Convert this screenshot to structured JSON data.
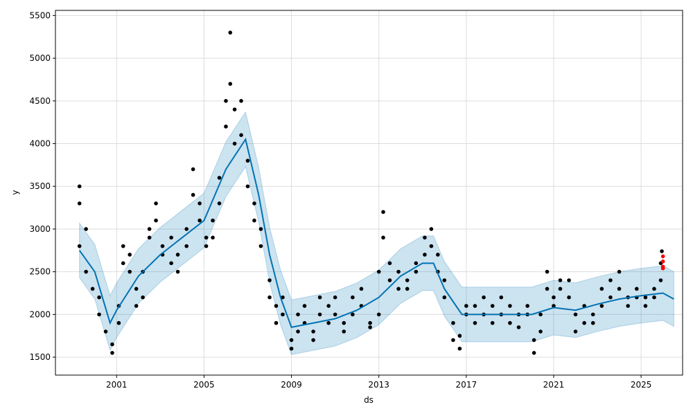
{
  "chart_data": {
    "type": "line",
    "title": "",
    "xlabel": "ds",
    "ylabel": "y",
    "xlim": [
      1998.2,
      2026.9
    ],
    "ylim": [
      1290,
      5560
    ],
    "grid": true,
    "x_ticks": [
      2001,
      2005,
      2009,
      2013,
      2017,
      2021,
      2025
    ],
    "x_tick_labels": [
      "2001",
      "2005",
      "2009",
      "2013",
      "2017",
      "2021",
      "2025"
    ],
    "y_ticks": [
      1500,
      2000,
      2500,
      3000,
      3500,
      4000,
      4500,
      5000,
      5500
    ],
    "y_tick_labels": [
      "1500",
      "2000",
      "2500",
      "3000",
      "3500",
      "4000",
      "4500",
      "5000",
      "5500"
    ],
    "colors": {
      "forecast": "#0072B2",
      "band": "#0072B2",
      "observed": "#000000",
      "test": "#ff0000"
    },
    "forecast": {
      "x": [
        1999.3,
        2000,
        2000.7,
        2001,
        2002,
        2003,
        2004,
        2005,
        2006,
        2006.9,
        2007.5,
        2008,
        2008.5,
        2009,
        2010,
        2011,
        2012,
        2013,
        2014,
        2015,
        2015.5,
        2016,
        2016.8,
        2018,
        2019,
        2020,
        2021,
        2022,
        2023,
        2024,
        2025,
        2026,
        2026.5
      ],
      "yhat": [
        2750,
        2500,
        1900,
        2050,
        2450,
        2700,
        2900,
        3100,
        3700,
        4050,
        3400,
        2700,
        2200,
        1850,
        1900,
        1950,
        2050,
        2200,
        2450,
        2600,
        2600,
        2300,
        2000,
        2000,
        2000,
        2000,
        2080,
        2050,
        2120,
        2180,
        2220,
        2250,
        2180
      ],
      "band_halfwidth": 320
    },
    "observed": [
      [
        1999.3,
        3500
      ],
      [
        1999.3,
        3300
      ],
      [
        1999.3,
        2800
      ],
      [
        1999.6,
        3000
      ],
      [
        1999.6,
        2500
      ],
      [
        1999.9,
        2300
      ],
      [
        2000.2,
        2200
      ],
      [
        2000.2,
        2000
      ],
      [
        2000.5,
        1800
      ],
      [
        2000.8,
        1550
      ],
      [
        2000.8,
        1650
      ],
      [
        2001.1,
        1900
      ],
      [
        2001.1,
        2100
      ],
      [
        2001.3,
        2600
      ],
      [
        2001.3,
        2800
      ],
      [
        2001.6,
        2500
      ],
      [
        2001.6,
        2700
      ],
      [
        2001.9,
        2300
      ],
      [
        2001.9,
        2100
      ],
      [
        2002.2,
        2200
      ],
      [
        2002.2,
        2500
      ],
      [
        2002.5,
        2900
      ],
      [
        2002.5,
        3000
      ],
      [
        2002.8,
        3300
      ],
      [
        2002.8,
        3100
      ],
      [
        2003.1,
        2800
      ],
      [
        2003.1,
        2700
      ],
      [
        2003.5,
        2600
      ],
      [
        2003.5,
        2900
      ],
      [
        2003.8,
        2500
      ],
      [
        2003.8,
        2700
      ],
      [
        2004.2,
        2800
      ],
      [
        2004.2,
        3000
      ],
      [
        2004.5,
        3400
      ],
      [
        2004.5,
        3700
      ],
      [
        2004.8,
        3300
      ],
      [
        2004.8,
        3100
      ],
      [
        2005.1,
        2900
      ],
      [
        2005.1,
        2800
      ],
      [
        2005.4,
        2900
      ],
      [
        2005.4,
        3100
      ],
      [
        2005.7,
        3300
      ],
      [
        2005.7,
        3600
      ],
      [
        2006.0,
        4200
      ],
      [
        2006.0,
        4500
      ],
      [
        2006.2,
        4700
      ],
      [
        2006.2,
        5300
      ],
      [
        2006.4,
        4400
      ],
      [
        2006.4,
        4000
      ],
      [
        2006.7,
        4500
      ],
      [
        2006.7,
        4100
      ],
      [
        2007.0,
        3800
      ],
      [
        2007.0,
        3500
      ],
      [
        2007.3,
        3300
      ],
      [
        2007.3,
        3100
      ],
      [
        2007.6,
        3000
      ],
      [
        2007.6,
        2800
      ],
      [
        2008.0,
        2400
      ],
      [
        2008.0,
        2200
      ],
      [
        2008.3,
        2100
      ],
      [
        2008.3,
        1900
      ],
      [
        2008.6,
        2000
      ],
      [
        2008.6,
        2200
      ],
      [
        2009.0,
        1700
      ],
      [
        2009.0,
        1600
      ],
      [
        2009.3,
        1800
      ],
      [
        2009.3,
        2000
      ],
      [
        2009.6,
        2100
      ],
      [
        2009.6,
        1900
      ],
      [
        2010.0,
        1800
      ],
      [
        2010.0,
        1700
      ],
      [
        2010.3,
        2000
      ],
      [
        2010.3,
        2200
      ],
      [
        2010.7,
        2100
      ],
      [
        2010.7,
        1900
      ],
      [
        2011.0,
        2200
      ],
      [
        2011.0,
        2000
      ],
      [
        2011.4,
        1900
      ],
      [
        2011.4,
        1800
      ],
      [
        2011.8,
        2000
      ],
      [
        2011.8,
        2200
      ],
      [
        2012.2,
        2300
      ],
      [
        2012.2,
        2100
      ],
      [
        2012.6,
        1900
      ],
      [
        2012.6,
        1850
      ],
      [
        2013.0,
        2000
      ],
      [
        2013.0,
        2500
      ],
      [
        2013.2,
        3200
      ],
      [
        2013.2,
        2900
      ],
      [
        2013.5,
        2600
      ],
      [
        2013.5,
        2400
      ],
      [
        2013.9,
        2300
      ],
      [
        2013.9,
        2500
      ],
      [
        2014.3,
        2300
      ],
      [
        2014.3,
        2400
      ],
      [
        2014.7,
        2500
      ],
      [
        2014.7,
        2600
      ],
      [
        2015.1,
        2700
      ],
      [
        2015.1,
        2900
      ],
      [
        2015.4,
        3000
      ],
      [
        2015.4,
        2800
      ],
      [
        2015.7,
        2700
      ],
      [
        2015.7,
        2500
      ],
      [
        2016.0,
        2400
      ],
      [
        2016.0,
        2200
      ],
      [
        2016.4,
        1900
      ],
      [
        2016.4,
        1700
      ],
      [
        2016.7,
        1600
      ],
      [
        2016.7,
        1750
      ],
      [
        2017.0,
        2000
      ],
      [
        2017.0,
        2100
      ],
      [
        2017.4,
        2100
      ],
      [
        2017.4,
        1900
      ],
      [
        2017.8,
        2200
      ],
      [
        2017.8,
        2000
      ],
      [
        2018.2,
        1900
      ],
      [
        2018.2,
        2100
      ],
      [
        2018.6,
        2000
      ],
      [
        2018.6,
        2200
      ],
      [
        2019.0,
        1900
      ],
      [
        2019.0,
        2100
      ],
      [
        2019.4,
        2000
      ],
      [
        2019.4,
        1850
      ],
      [
        2019.8,
        2100
      ],
      [
        2019.8,
        2000
      ],
      [
        2020.1,
        1700
      ],
      [
        2020.1,
        1550
      ],
      [
        2020.4,
        1800
      ],
      [
        2020.4,
        2000
      ],
      [
        2020.7,
        2300
      ],
      [
        2020.7,
        2500
      ],
      [
        2021.0,
        2200
      ],
      [
        2021.0,
        2100
      ],
      [
        2021.3,
        2400
      ],
      [
        2021.3,
        2300
      ],
      [
        2021.7,
        2200
      ],
      [
        2021.7,
        2400
      ],
      [
        2022.0,
        2000
      ],
      [
        2022.0,
        1800
      ],
      [
        2022.4,
        1900
      ],
      [
        2022.4,
        2100
      ],
      [
        2022.8,
        2000
      ],
      [
        2022.8,
        1900
      ],
      [
        2023.2,
        2100
      ],
      [
        2023.2,
        2300
      ],
      [
        2023.6,
        2200
      ],
      [
        2023.6,
        2400
      ],
      [
        2024.0,
        2500
      ],
      [
        2024.0,
        2300
      ],
      [
        2024.4,
        2200
      ],
      [
        2024.4,
        2100
      ],
      [
        2024.8,
        2200
      ],
      [
        2024.8,
        2300
      ],
      [
        2025.2,
        2200
      ],
      [
        2025.2,
        2100
      ],
      [
        2025.6,
        2200
      ],
      [
        2025.6,
        2300
      ],
      [
        2025.9,
        2400
      ],
      [
        2025.9,
        2600
      ],
      [
        2025.95,
        2740
      ]
    ],
    "test_points": [
      [
        2026.0,
        2680
      ],
      [
        2026.0,
        2620
      ],
      [
        2026.0,
        2560
      ],
      [
        2026.0,
        2540
      ]
    ]
  }
}
